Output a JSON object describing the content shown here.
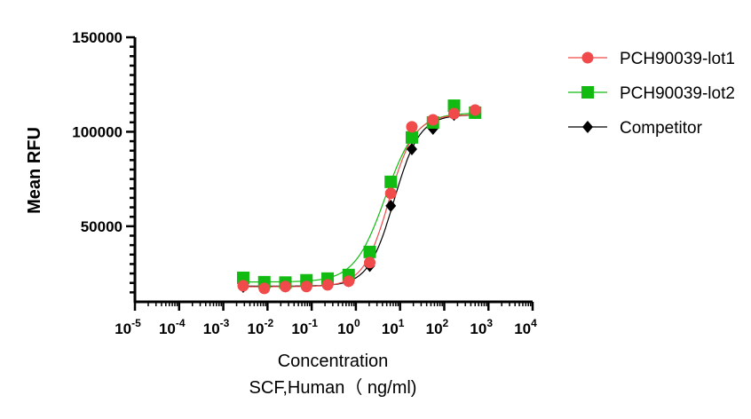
{
  "chart_data": {
    "type": "scatter",
    "title": "",
    "xlabel": "Concentration",
    "xlabel2": "SCF,Human（ ng/ml)",
    "ylabel": "Mean RFU",
    "xscale": "log",
    "xlim_exp": [
      -5,
      4
    ],
    "x_ticks": [
      -5,
      -4,
      -3,
      -2,
      -1,
      0,
      1,
      2,
      3,
      4
    ],
    "ylim": [
      10000,
      150000
    ],
    "y_ticks": [
      50000,
      100000,
      150000
    ],
    "y_tick_labels": [
      "50000",
      "100000",
      "150000"
    ],
    "y_minor_step": 5000,
    "legend_position": "right",
    "x": [
      0.00282,
      0.00847,
      0.0254,
      0.0762,
      0.229,
      0.686,
      2.06,
      6.17,
      18.5,
      55.6,
      166.7,
      500
    ],
    "series": [
      {
        "name": "PCH90039-lot1",
        "color": "#f04a4a",
        "marker": "circle",
        "values": [
          18500,
          17100,
          18100,
          18100,
          19000,
          20900,
          30800,
          67400,
          102600,
          106300,
          109600,
          111500
        ],
        "fit": {
          "bottom": 18000,
          "top": 109000,
          "ec50": 5.6,
          "hill": 1.5
        }
      },
      {
        "name": "PCH90039-lot2",
        "color": "#11bb11",
        "marker": "square",
        "values": [
          22700,
          20400,
          20200,
          21400,
          22300,
          24200,
          36400,
          73500,
          97000,
          104900,
          113800,
          110100
        ],
        "fit": {
          "bottom": 20500,
          "top": 110000,
          "ec50": 4.6,
          "hill": 1.25
        }
      },
      {
        "name": "Competitor",
        "color": "#000000",
        "marker": "diamond",
        "values": [
          18000,
          18000,
          18200,
          18500,
          19500,
          21000,
          29000,
          60800,
          90800,
          101600,
          109000,
          110000
        ],
        "fit": {
          "bottom": 18300,
          "top": 109000,
          "ec50": 7.3,
          "hill": 1.5
        }
      }
    ]
  }
}
